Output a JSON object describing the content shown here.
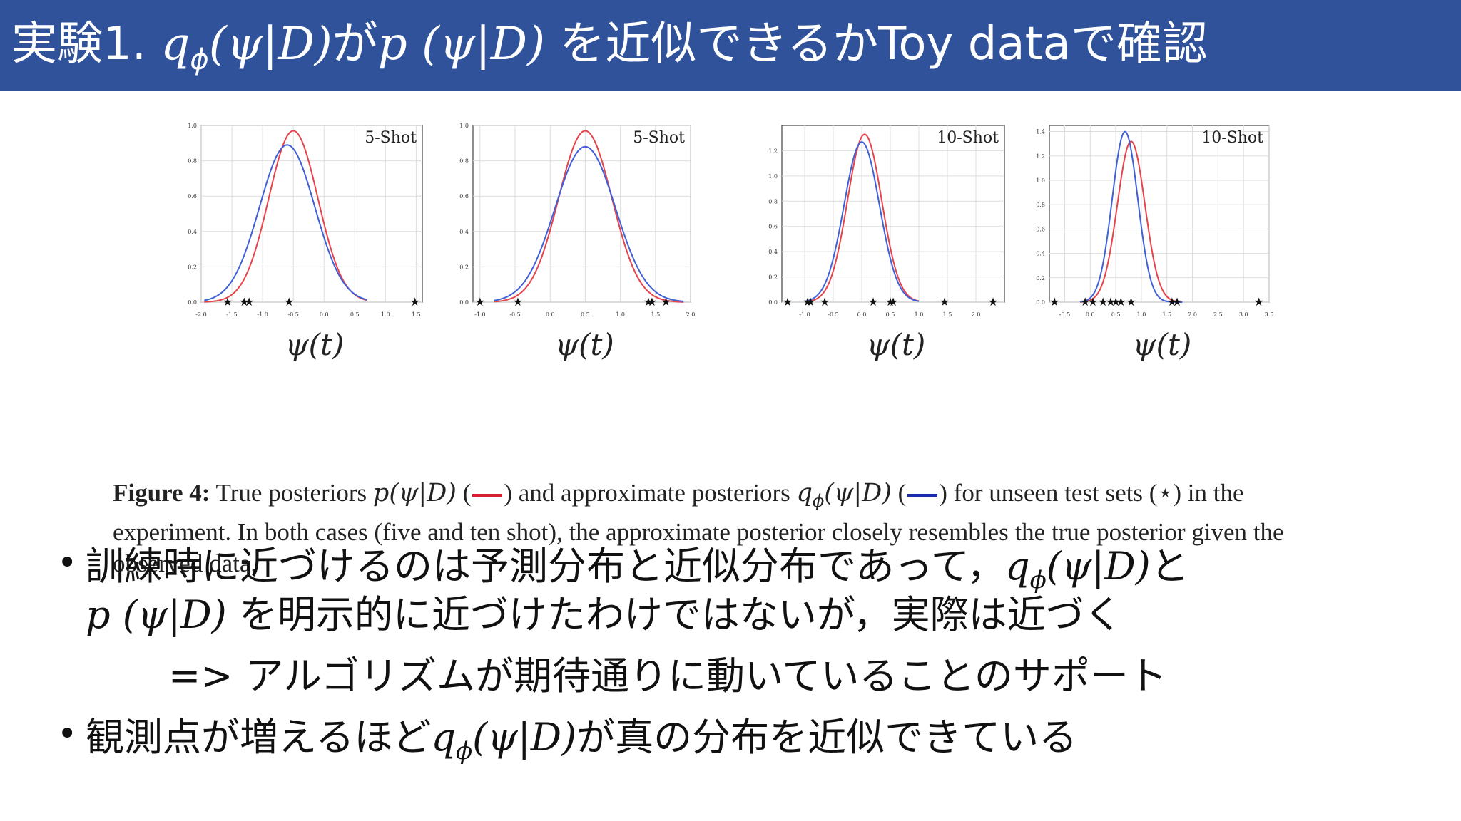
{
  "header": {
    "prefix": "実験1. ",
    "q": "q",
    "q_sub": "ϕ",
    "psi_d_1": "(ψ|D)",
    "ga": "が",
    "p": "p",
    "psi_d_2": " (ψ|D)",
    "suffix": " を近似できるかToy dataで確認"
  },
  "figure": {
    "caption_label": "Figure 4:",
    "caption_t1": " True posteriors ",
    "caption_p": "p(ψ|D)",
    "caption_t2": " (",
    "caption_t3": ") and approximate posteriors ",
    "caption_q": "q",
    "caption_qsub": "ϕ",
    "caption_q2": "(ψ|D)",
    "caption_t4": " (",
    "caption_t5": ") for unseen test sets (⋆) in the experiment. In both cases (five and ten shot), the approximate posterior closely resembles the true posterior given the observed data.",
    "xlabel": "ψ(t)"
  },
  "chart_data": [
    {
      "type": "line",
      "title": "5-Shot",
      "xlabel": "ψ(t)",
      "xlim": [
        -2.0,
        1.6
      ],
      "ylim": [
        0.0,
        1.0
      ],
      "xticks": [
        "-2.0",
        "-1.5",
        "-1.0",
        "-0.5",
        "0.0",
        "0.5",
        "1.0",
        "1.5"
      ],
      "yticks": [
        "0.0",
        "0.2",
        "0.4",
        "0.6",
        "0.8",
        "1.0"
      ],
      "series": [
        {
          "color": "#e8424a",
          "mean": -0.5,
          "sd": 0.4,
          "peak": 0.97,
          "from": -1.95,
          "to": 0.7
        },
        {
          "color": "#4060d8",
          "mean": -0.6,
          "sd": 0.45,
          "peak": 0.89,
          "from": -1.95,
          "to": 0.7
        }
      ],
      "stars": [
        -1.57,
        -1.3,
        -1.22,
        -0.57,
        1.48
      ]
    },
    {
      "type": "line",
      "title": "5-Shot",
      "xlabel": "ψ(t)",
      "xlim": [
        -1.1,
        2.0
      ],
      "ylim": [
        0.0,
        1.0
      ],
      "xticks": [
        "-1.0",
        "-0.5",
        "0.0",
        "0.5",
        "1.0",
        "1.5",
        "2.0"
      ],
      "yticks": [
        "0.0",
        "0.2",
        "0.4",
        "0.6",
        "0.8",
        "1.0"
      ],
      "series": [
        {
          "color": "#e8424a",
          "mean": 0.5,
          "sd": 0.38,
          "peak": 0.97,
          "from": -0.8,
          "to": 1.9
        },
        {
          "color": "#4060d8",
          "mean": 0.5,
          "sd": 0.43,
          "peak": 0.88,
          "from": -0.8,
          "to": 1.9
        }
      ],
      "stars": [
        -1.0,
        -0.46,
        1.4,
        1.45,
        1.65
      ]
    },
    {
      "type": "line",
      "title": "10-Shot",
      "xlabel": "ψ(t)",
      "xlim": [
        -1.4,
        2.5
      ],
      "ylim": [
        0.0,
        1.4
      ],
      "xticks": [
        "-1.0",
        "-0.5",
        "0.0",
        "0.5",
        "1.0",
        "1.5",
        "2.0"
      ],
      "yticks": [
        "0.0",
        "0.2",
        "0.4",
        "0.6",
        "0.8",
        "1.0",
        "1.2"
      ],
      "series": [
        {
          "color": "#e8424a",
          "mean": 0.05,
          "sd": 0.3,
          "peak": 1.33,
          "from": -1.0,
          "to": 1.0
        },
        {
          "color": "#4060d8",
          "mean": 0.0,
          "sd": 0.31,
          "peak": 1.27,
          "from": -1.0,
          "to": 1.0
        }
      ],
      "stars": [
        -1.3,
        -0.95,
        -0.9,
        -0.65,
        0.2,
        0.5,
        0.55,
        1.45,
        2.3
      ]
    },
    {
      "type": "line",
      "title": "10-Shot",
      "xlabel": "ψ(t)",
      "xlim": [
        -0.8,
        3.5
      ],
      "ylim": [
        0.0,
        1.45
      ],
      "xticks": [
        "-0.5",
        "0.0",
        "0.5",
        "1.0",
        "1.5",
        "2.0",
        "2.5",
        "3.0",
        "3.5"
      ],
      "yticks": [
        "0.0",
        "0.2",
        "0.4",
        "0.6",
        "0.8",
        "1.0",
        "1.2",
        "1.4"
      ],
      "series": [
        {
          "color": "#e8424a",
          "mean": 0.8,
          "sd": 0.27,
          "peak": 1.32,
          "from": -0.2,
          "to": 1.8
        },
        {
          "color": "#4060d8",
          "mean": 0.68,
          "sd": 0.25,
          "peak": 1.4,
          "from": -0.2,
          "to": 1.8
        }
      ],
      "stars": [
        -0.7,
        -0.1,
        0.05,
        0.25,
        0.4,
        0.5,
        0.6,
        0.8,
        1.6,
        1.7,
        3.3
      ]
    }
  ],
  "bullets": {
    "b1_l1_pre": "訓練時に近づけるのは予測分布と近似分布であって，",
    "b1_l1_q": "q",
    "b1_l1_qsub": "ϕ",
    "b1_l1_psi": "(ψ|D)",
    "b1_l1_post": "と",
    "b1_l2_p": "p",
    "b1_l2_psi": " (ψ|D)",
    "b1_l2_post": " を明示的に近づけたわけではないが，実際は近づく",
    "b1_l3": "=> アルゴリズムが期待通りに動いていることのサポート",
    "b2_pre": "観測点が増えるほど",
    "b2_q": "q",
    "b2_qsub": "ϕ",
    "b2_psi": "(ψ|D)",
    "b2_post": "が真の分布を近似できている",
    "bullet_char": "•"
  }
}
